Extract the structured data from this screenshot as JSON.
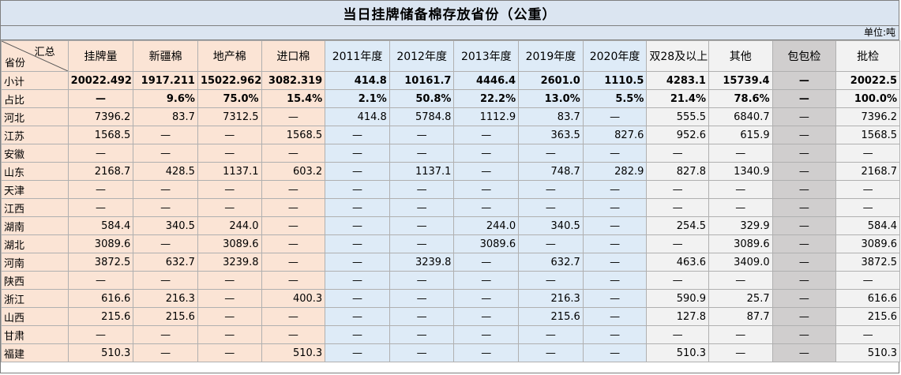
{
  "title": "当日挂牌储备棉存放省份（公重）",
  "unit": "单位:吨",
  "corner": {
    "top": "汇总",
    "bottom": "省份"
  },
  "headers": [
    "挂牌量",
    "新疆棉",
    "地产棉",
    "进口棉",
    "2011年度",
    "2012年度",
    "2013年度",
    "2019年度",
    "2020年度",
    "双28及以上",
    "其他",
    "包包检",
    "批检"
  ],
  "colors": {
    "peach": "#fbe4d5",
    "blue": "#deebf7",
    "light_gray": "#f2f2f2",
    "dark_gray": "#d0cece",
    "title_bg": "#dbe5f1"
  },
  "rows": [
    {
      "name": "小计",
      "bold": true,
      "values": [
        "20022.492",
        "1917.211",
        "15022.962",
        "3082.319",
        "414.8",
        "10161.7",
        "4446.4",
        "2601.0",
        "1110.5",
        "4283.1",
        "15739.4",
        "—",
        "20022.5"
      ]
    },
    {
      "name": "占比",
      "bold": true,
      "values": [
        "—",
        "9.6%",
        "75.0%",
        "15.4%",
        "2.1%",
        "50.8%",
        "22.2%",
        "13.0%",
        "5.5%",
        "21.4%",
        "78.6%",
        "—",
        "100.0%"
      ]
    },
    {
      "name": "河北",
      "values": [
        "7396.2",
        "83.7",
        "7312.5",
        "—",
        "414.8",
        "5784.8",
        "1112.9",
        "83.7",
        "—",
        "555.5",
        "6840.7",
        "—",
        "7396.2"
      ]
    },
    {
      "name": "江苏",
      "values": [
        "1568.5",
        "—",
        "—",
        "1568.5",
        "—",
        "—",
        "—",
        "363.5",
        "827.6",
        "952.6",
        "615.9",
        "—",
        "1568.5"
      ]
    },
    {
      "name": "安徽",
      "values": [
        "—",
        "—",
        "—",
        "—",
        "—",
        "—",
        "—",
        "—",
        "—",
        "—",
        "—",
        "—",
        "—"
      ]
    },
    {
      "name": "山东",
      "values": [
        "2168.7",
        "428.5",
        "1137.1",
        "603.2",
        "—",
        "1137.1",
        "—",
        "748.7",
        "282.9",
        "827.8",
        "1340.9",
        "—",
        "2168.7"
      ]
    },
    {
      "name": "天津",
      "values": [
        "—",
        "—",
        "—",
        "—",
        "—",
        "—",
        "—",
        "—",
        "—",
        "—",
        "—",
        "—",
        "—"
      ]
    },
    {
      "name": "江西",
      "values": [
        "—",
        "—",
        "—",
        "—",
        "—",
        "—",
        "—",
        "—",
        "—",
        "—",
        "—",
        "—",
        "—"
      ]
    },
    {
      "name": "湖南",
      "values": [
        "584.4",
        "340.5",
        "244.0",
        "—",
        "—",
        "—",
        "244.0",
        "340.5",
        "—",
        "254.5",
        "329.9",
        "—",
        "584.4"
      ]
    },
    {
      "name": "湖北",
      "values": [
        "3089.6",
        "—",
        "3089.6",
        "—",
        "—",
        "—",
        "3089.6",
        "—",
        "—",
        "—",
        "3089.6",
        "—",
        "3089.6"
      ]
    },
    {
      "name": "河南",
      "values": [
        "3872.5",
        "632.7",
        "3239.8",
        "—",
        "—",
        "3239.8",
        "—",
        "632.7",
        "—",
        "463.6",
        "3409.0",
        "—",
        "3872.5"
      ]
    },
    {
      "name": "陕西",
      "values": [
        "—",
        "—",
        "—",
        "—",
        "—",
        "—",
        "—",
        "—",
        "—",
        "—",
        "—",
        "—",
        "—"
      ]
    },
    {
      "name": "浙江",
      "values": [
        "616.6",
        "216.3",
        "—",
        "400.3",
        "—",
        "—",
        "—",
        "216.3",
        "—",
        "590.9",
        "25.7",
        "—",
        "616.6"
      ]
    },
    {
      "name": "山西",
      "values": [
        "215.6",
        "215.6",
        "—",
        "—",
        "—",
        "—",
        "—",
        "215.6",
        "—",
        "127.8",
        "87.7",
        "—",
        "215.6"
      ]
    },
    {
      "name": "甘肃",
      "values": [
        "—",
        "—",
        "—",
        "—",
        "—",
        "—",
        "—",
        "—",
        "—",
        "—",
        "—",
        "—",
        "—"
      ]
    },
    {
      "name": "福建",
      "values": [
        "510.3",
        "—",
        "—",
        "510.3",
        "—",
        "—",
        "—",
        "—",
        "—",
        "510.3",
        "—",
        "—",
        "510.3"
      ]
    }
  ]
}
